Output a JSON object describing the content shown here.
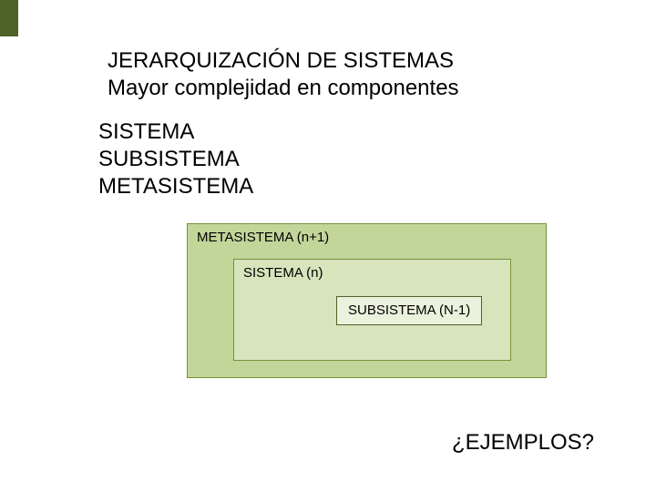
{
  "decor": {
    "accent_color": "#4f6228"
  },
  "title": {
    "line1": "JERARQUIZACIÓN DE SISTEMAS",
    "line2": "Mayor complejidad en componentes",
    "font_size_pt": 18,
    "color": "#000000"
  },
  "bullets": {
    "items": [
      "SISTEMA",
      "SUBSISTEMA",
      "METASISTEMA"
    ],
    "font_size_pt": 18,
    "color": "#000000"
  },
  "diagram": {
    "type": "nested-box",
    "outer": {
      "label": "METASISTEMA (n+1)",
      "bg": "#c2d69a",
      "border": "#77933c"
    },
    "middle": {
      "label": "SISTEMA (n)",
      "bg": "#d7e4bc",
      "border": "#77933c"
    },
    "inner": {
      "label": "SUBSISTEMA (N-1)",
      "bg": "#ebf1dd",
      "border": "#4f6228"
    },
    "label_font_size_pt": 11,
    "label_font_family": "Verdana"
  },
  "footer": {
    "text": "¿EJEMPLOS?",
    "font_size_pt": 18,
    "color": "#000000"
  }
}
